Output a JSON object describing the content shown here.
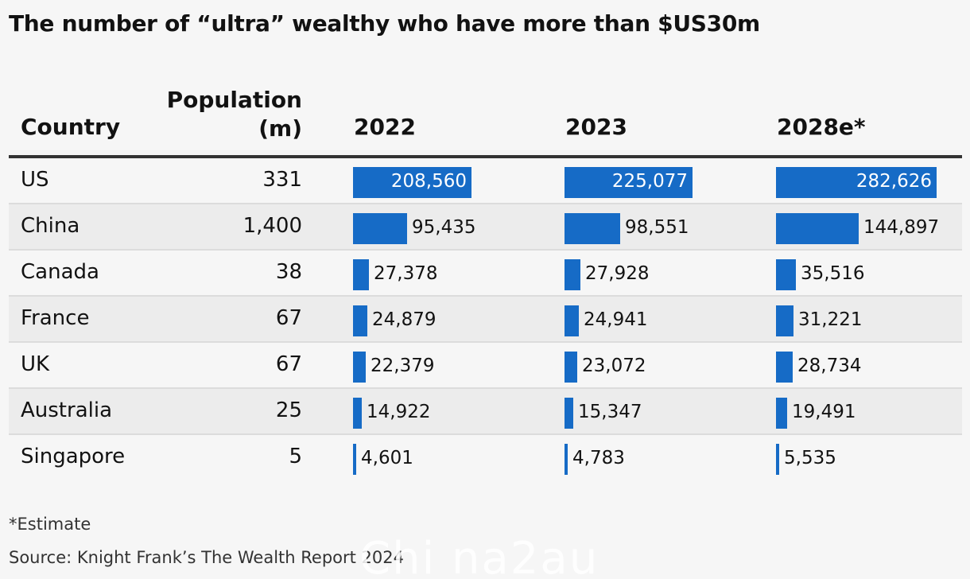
{
  "title": "The number of “ultra” wealthy who have more than $US30m",
  "headers": {
    "country": "Country",
    "population_line1": "Population",
    "population_line2": "(m)",
    "years": [
      "2022",
      "2023",
      "2028e*"
    ]
  },
  "footnote": "*Estimate",
  "source": "Source: Knight Frank’s The Wealth Report 2024",
  "watermark": "Chi na2au",
  "colors": {
    "bar": "#166bc6"
  },
  "chart_data": {
    "type": "table",
    "columns": [
      "Country",
      "Population (m)",
      "2022",
      "2023",
      "2028e*"
    ],
    "rows": [
      {
        "country": "US",
        "population": "331",
        "values": [
          208560,
          225077,
          282626
        ],
        "labels": [
          "208,560",
          "225,077",
          "282,626"
        ]
      },
      {
        "country": "China",
        "population": "1,400",
        "values": [
          95435,
          98551,
          144897
        ],
        "labels": [
          "95,435",
          "98,551",
          "144,897"
        ]
      },
      {
        "country": "Canada",
        "population": "38",
        "values": [
          27378,
          27928,
          35516
        ],
        "labels": [
          "27,378",
          "27,928",
          "35,516"
        ]
      },
      {
        "country": "France",
        "population": "67",
        "values": [
          24879,
          24941,
          31221
        ],
        "labels": [
          "24,879",
          "24,941",
          "31,221"
        ]
      },
      {
        "country": "UK",
        "population": "67",
        "values": [
          22379,
          23072,
          28734
        ],
        "labels": [
          "22,379",
          "23,072",
          "28,734"
        ]
      },
      {
        "country": "Australia",
        "population": "25",
        "values": [
          14922,
          15347,
          19491
        ],
        "labels": [
          "14,922",
          "15,347",
          "19,491"
        ]
      },
      {
        "country": "Singapore",
        "population": "5",
        "values": [
          4601,
          4783,
          5535
        ],
        "labels": [
          "4,601",
          "4,783",
          "5,535"
        ]
      }
    ]
  }
}
